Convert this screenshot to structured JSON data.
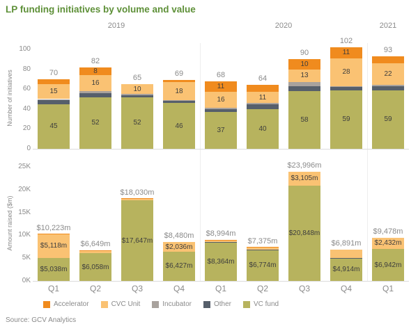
{
  "header": {
    "title": "LP funding initiatives by volume and value",
    "title_color": "#5e9038"
  },
  "source": "Source: GCV Analytics",
  "year_groups": [
    {
      "label": "2019",
      "columns": 4
    },
    {
      "label": "2020",
      "columns": 4
    },
    {
      "label": "2021",
      "columns": 1
    }
  ],
  "legend": {
    "items": [
      {
        "label": "Accelerator",
        "color": "#f08b1e"
      },
      {
        "label": "CVC Unit",
        "color": "#fac273"
      },
      {
        "label": "Incubator",
        "color": "#a8a29d"
      },
      {
        "label": "Other",
        "color": "#565f6b"
      },
      {
        "label": "VC fund",
        "color": "#b7b35e"
      }
    ]
  },
  "chart_data": [
    {
      "id": "volume",
      "type": "bar",
      "stacked": true,
      "title": "",
      "xlabel": "",
      "ylabel": "Number of initiatives",
      "categories": [
        "Q1",
        "Q2",
        "Q3",
        "Q4",
        "Q1",
        "Q2",
        "Q3",
        "Q4",
        "Q1"
      ],
      "ylim": [
        0,
        100
      ],
      "yticks": [
        "0",
        "20",
        "40",
        "60",
        "80",
        "100"
      ],
      "grid": false,
      "legend_position": "bottom",
      "totals": [
        70,
        82,
        65,
        69,
        68,
        64,
        90,
        102,
        93
      ],
      "totals_labels": [
        "70",
        "82",
        "65",
        "69",
        "68",
        "64",
        "90",
        "102",
        "93"
      ],
      "series": [
        {
          "name": "VC fund",
          "color": "#b7b35e",
          "values": [
            45,
            52,
            52,
            46,
            37,
            40,
            58,
            59,
            59
          ],
          "labels": [
            "45",
            "52",
            "52",
            "46",
            "37",
            "40",
            "58",
            "59",
            "59"
          ]
        },
        {
          "name": "Other",
          "color": "#565f6b",
          "values": [
            4,
            4,
            2,
            2,
            3,
            5,
            5,
            3,
            4
          ],
          "labels": [
            "",
            "",
            "",
            "",
            "",
            "",
            "",
            "",
            ""
          ]
        },
        {
          "name": "Incubator",
          "color": "#a8a29d",
          "values": [
            1,
            2,
            1,
            1,
            1,
            1,
            4,
            1,
            1
          ],
          "labels": [
            "",
            "",
            "",
            "",
            "",
            "",
            "",
            "",
            ""
          ]
        },
        {
          "name": "CVC Unit",
          "color": "#fac273",
          "values": [
            15,
            16,
            10,
            18,
            16,
            11,
            13,
            28,
            22
          ],
          "labels": [
            "15",
            "16",
            "10",
            "18",
            "16",
            "11",
            "13",
            "28",
            "22"
          ]
        },
        {
          "name": "Accelerator",
          "color": "#f08b1e",
          "values": [
            5,
            8,
            0,
            2,
            11,
            7,
            10,
            11,
            7
          ],
          "labels": [
            "",
            "8",
            "",
            "",
            "11",
            "",
            "10",
            "11",
            ""
          ]
        }
      ]
    },
    {
      "id": "value",
      "type": "bar",
      "stacked": true,
      "title": "",
      "xlabel": "",
      "ylabel": "Amount raised ($m)",
      "categories": [
        "Q1",
        "Q2",
        "Q3",
        "Q4",
        "Q1",
        "Q2",
        "Q3",
        "Q4",
        "Q1"
      ],
      "ylim": [
        0,
        25000
      ],
      "yticks": [
        "0K",
        "5K",
        "10K",
        "15K",
        "20K",
        "25K"
      ],
      "grid": false,
      "legend_position": "bottom",
      "totals": [
        10223,
        6649,
        18030,
        8480,
        8994,
        7375,
        23996,
        6891,
        9478
      ],
      "totals_labels": [
        "$10,223m",
        "$6,649m",
        "$18,030m",
        "$8,480m",
        "$8,994m",
        "$7,375m",
        "$23,996m",
        "$6,891m",
        "$9,478m"
      ],
      "series": [
        {
          "name": "VC fund",
          "color": "#b7b35e",
          "values": [
            5038,
            6058,
            17647,
            6427,
            8364,
            6774,
            20848,
            4914,
            6942
          ],
          "labels": [
            "$5,038m",
            "$6,058m",
            "$17,647m",
            "$6,427m",
            "$8,364m",
            "$6,774m",
            "$20,848m",
            "$4,914m",
            "$6,942m"
          ]
        },
        {
          "name": "Other",
          "color": "#565f6b",
          "values": [
            40,
            100,
            80,
            17,
            100,
            150,
            43,
            77,
            104
          ],
          "labels": [
            "",
            "",
            "",
            "",
            "",
            "",
            "",
            "",
            ""
          ]
        },
        {
          "name": "Incubator",
          "color": "#a8a29d",
          "values": [
            0,
            0,
            0,
            0,
            0,
            0,
            0,
            0,
            0
          ],
          "labels": [
            "",
            "",
            "",
            "",
            "",
            "",
            "",
            "",
            ""
          ]
        },
        {
          "name": "CVC Unit",
          "color": "#fac273",
          "values": [
            5118,
            400,
            250,
            2036,
            380,
            350,
            3105,
            1900,
            2432
          ],
          "labels": [
            "$5,118m",
            "",
            "",
            "$2,036m",
            "",
            "",
            "$3,105m",
            "",
            "$2,432m"
          ]
        },
        {
          "name": "Accelerator",
          "color": "#f08b1e",
          "values": [
            27,
            91,
            53,
            0,
            150,
            101,
            0,
            0,
            0
          ],
          "labels": [
            "",
            "",
            "",
            "",
            "",
            "",
            "",
            "",
            ""
          ]
        }
      ]
    }
  ]
}
